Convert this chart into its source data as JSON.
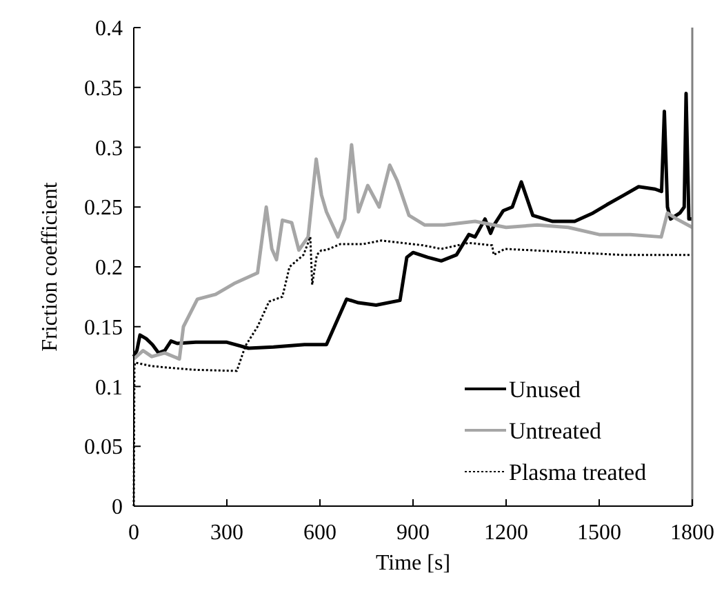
{
  "chart_data": {
    "type": "line",
    "xlabel": "Time [s]",
    "ylabel": "Friction coefficient",
    "xlim": [
      0,
      1800
    ],
    "xticks": [
      0,
      300,
      600,
      900,
      1200,
      1500,
      1800
    ],
    "ylim": [
      0,
      0.4
    ],
    "yticks": [
      0,
      0.05,
      0.1,
      0.15,
      0.2,
      0.25,
      0.3,
      0.35,
      0.4
    ],
    "grid": false,
    "legend": "bottom right",
    "series": [
      {
        "name": "Unused",
        "color": "#000000",
        "line_style": "solid",
        "x": [
          0,
          10,
          20,
          40,
          60,
          80,
          100,
          120,
          140,
          200,
          300,
          370,
          450,
          550,
          621,
          686,
          724,
          781,
          858,
          880,
          900,
          947,
          991,
          1040,
          1080,
          1100,
          1132,
          1150,
          1161,
          1191,
          1220,
          1249,
          1286,
          1350,
          1421,
          1480,
          1525,
          1580,
          1627,
          1680,
          1701,
          1710,
          1720,
          1730,
          1760,
          1774,
          1780,
          1789,
          1800
        ],
        "values": [
          0.125,
          0.13,
          0.143,
          0.14,
          0.135,
          0.128,
          0.13,
          0.138,
          0.136,
          0.137,
          0.137,
          0.132,
          0.133,
          0.135,
          0.135,
          0.173,
          0.17,
          0.168,
          0.172,
          0.208,
          0.212,
          0.208,
          0.205,
          0.21,
          0.227,
          0.225,
          0.24,
          0.228,
          0.235,
          0.247,
          0.25,
          0.271,
          0.243,
          0.238,
          0.238,
          0.245,
          0.252,
          0.26,
          0.267,
          0.265,
          0.263,
          0.33,
          0.25,
          0.24,
          0.245,
          0.25,
          0.345,
          0.24,
          0.24
        ]
      },
      {
        "name": "Untreated",
        "color": "#a6a6a6",
        "line_style": "solid",
        "x": [
          0,
          30,
          58,
          100,
          147,
          160,
          205,
          264,
          323,
          399,
          427,
          445,
          460,
          479,
          509,
          532,
          562,
          588,
          605,
          621,
          658,
          680,
          702,
          724,
          754,
          791,
          825,
          849,
          887,
          938,
          1000,
          1100,
          1200,
          1300,
          1400,
          1500,
          1600,
          1700,
          1720,
          1750,
          1800
        ],
        "values": [
          0.123,
          0.13,
          0.125,
          0.128,
          0.123,
          0.15,
          0.173,
          0.177,
          0.186,
          0.195,
          0.25,
          0.215,
          0.206,
          0.239,
          0.237,
          0.214,
          0.225,
          0.29,
          0.26,
          0.246,
          0.225,
          0.24,
          0.302,
          0.246,
          0.268,
          0.25,
          0.285,
          0.272,
          0.243,
          0.235,
          0.235,
          0.238,
          0.233,
          0.235,
          0.233,
          0.227,
          0.227,
          0.225,
          0.245,
          0.24,
          0.233
        ]
      },
      {
        "name": "Plasma treated",
        "color": "#000000",
        "line_style": "dotted",
        "x": [
          0,
          2,
          4,
          58,
          191,
          332,
          360,
          399,
          436,
          479,
          502,
          547,
          569,
          575,
          590,
          605,
          621,
          665,
          738,
          798,
          932,
          991,
          1080,
          1155,
          1160,
          1196,
          1347,
          1570,
          1800
        ],
        "values": [
          0,
          0.115,
          0.12,
          0.117,
          0.114,
          0.113,
          0.134,
          0.15,
          0.171,
          0.175,
          0.2,
          0.21,
          0.225,
          0.185,
          0.21,
          0.214,
          0.214,
          0.219,
          0.219,
          0.222,
          0.218,
          0.215,
          0.22,
          0.218,
          0.21,
          0.215,
          0.213,
          0.21,
          0.21
        ]
      }
    ]
  }
}
